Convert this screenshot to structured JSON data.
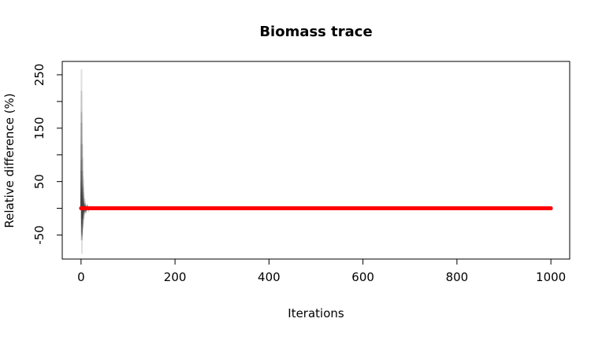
{
  "chart_data": {
    "type": "line",
    "title": "Biomass trace",
    "xlabel": "Iterations",
    "ylabel": "Relative difference (%)",
    "xlim": [
      -40,
      1040
    ],
    "ylim": [
      -95,
      275
    ],
    "x_ticks": [
      0,
      200,
      400,
      600,
      800,
      1000
    ],
    "y_ticks": [
      -50,
      0,
      50,
      100,
      150,
      200,
      250
    ],
    "y_tick_labels": [
      "-50",
      "",
      "50",
      "",
      "150",
      "",
      "250"
    ],
    "grid": false,
    "legend": "none",
    "series": [
      {
        "color": "#000000",
        "opacity": 0.12,
        "x": [
          0,
          1,
          2,
          3,
          4,
          5,
          6,
          8,
          10,
          13,
          16,
          20,
          25,
          30,
          40,
          50
        ],
        "traces": [
          [
            0,
            260,
            -85,
            120,
            -40,
            55,
            -20,
            18,
            -10,
            6,
            -4,
            3,
            -2,
            1,
            0,
            0
          ],
          [
            0,
            220,
            -60,
            95,
            -35,
            40,
            -15,
            12,
            -8,
            5,
            -3,
            2,
            -1,
            1,
            0,
            0
          ],
          [
            0,
            180,
            -50,
            70,
            -25,
            30,
            -12,
            10,
            -6,
            4,
            -2,
            2,
            -1,
            0,
            0,
            0
          ],
          [
            0,
            160,
            -45,
            60,
            -20,
            25,
            -10,
            8,
            -5,
            3,
            -2,
            1,
            -1,
            0,
            0,
            0
          ],
          [
            0,
            120,
            -55,
            45,
            -30,
            20,
            -8,
            6,
            -4,
            3,
            -1,
            1,
            0,
            0,
            0,
            0
          ],
          [
            0,
            90,
            -35,
            35,
            -15,
            15,
            -6,
            5,
            -3,
            2,
            -1,
            1,
            0,
            0,
            0,
            0
          ],
          [
            0,
            70,
            -50,
            25,
            -20,
            10,
            -5,
            4,
            -2,
            2,
            -1,
            0,
            0,
            0,
            0,
            0
          ],
          [
            0,
            50,
            -30,
            20,
            -12,
            8,
            -4,
            3,
            -2,
            1,
            0,
            0,
            0,
            0,
            0,
            0
          ],
          [
            0,
            30,
            -20,
            12,
            -8,
            5,
            -3,
            2,
            -1,
            1,
            0,
            0,
            0,
            0,
            0,
            0
          ],
          [
            0,
            -60,
            40,
            -20,
            15,
            -8,
            5,
            -3,
            2,
            -1,
            1,
            0,
            0,
            0,
            0,
            0
          ]
        ]
      },
      {
        "color": "#ff0000",
        "x": [
          0,
          1000
        ],
        "y": [
          0,
          0
        ]
      }
    ]
  }
}
